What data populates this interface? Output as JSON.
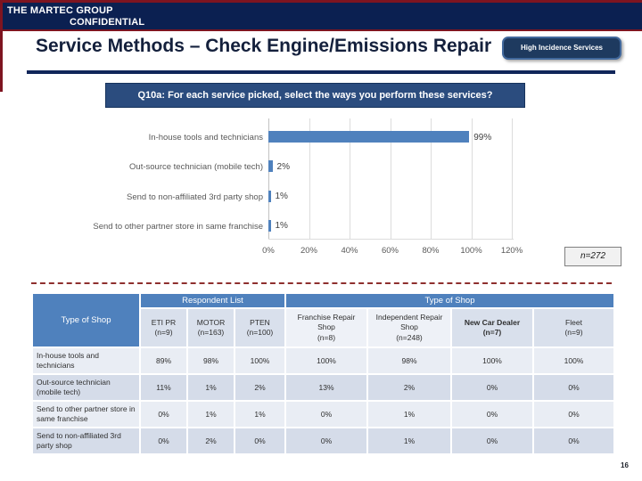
{
  "header": {
    "company": "THE MARTEC GROUP",
    "confidential": "CONFIDENTIAL"
  },
  "title": "Service Methods – Check Engine/Emissions Repair",
  "tag_button": "High Incidence Services",
  "question": "Q10a: For each service picked, select the ways you perform these services?",
  "chart_data": {
    "type": "bar",
    "orientation": "horizontal",
    "title": "",
    "categories": [
      "In-house tools and technicians",
      "Out-source technician (mobile tech)",
      "Send to non-affiliated 3rd party shop",
      "Send to other partner store in same franchise"
    ],
    "values": [
      99,
      2,
      1,
      1
    ],
    "value_labels": [
      "99%",
      "2%",
      "1%",
      "1%"
    ],
    "x_ticks": [
      "0%",
      "20%",
      "40%",
      "60%",
      "80%",
      "100%",
      "120%"
    ],
    "xlim": [
      0,
      120
    ],
    "grid": "vertical",
    "legend": "none",
    "bar_color": "#4f81bd",
    "sample_note": "n=272"
  },
  "table": {
    "corner_header": "Type of Shop",
    "group_headers": [
      {
        "label": "Respondent List",
        "span": 3
      },
      {
        "label": "Type of Shop",
        "span": 4
      }
    ],
    "columns": [
      {
        "label": "ETI PR",
        "n": "(n=9)"
      },
      {
        "label": "MOTOR",
        "n": "(n=163)"
      },
      {
        "label": "PTEN",
        "n": "(n=100)"
      },
      {
        "label": "Franchise Repair Shop",
        "n": "(n=8)"
      },
      {
        "label": "Independent Repair Shop",
        "n": "(n=248)"
      },
      {
        "label": "New Car Dealer",
        "n": "(n=7)"
      },
      {
        "label": "Fleet",
        "n": "(n=9)"
      }
    ],
    "rows": [
      {
        "label": "In-house tools and technicians",
        "values": [
          "89%",
          "98%",
          "100%",
          "100%",
          "98%",
          "100%",
          "100%"
        ]
      },
      {
        "label": "Out-source technician (mobile tech)",
        "values": [
          "11%",
          "1%",
          "2%",
          "13%",
          "2%",
          "0%",
          "0%"
        ]
      },
      {
        "label": "Send to other partner store in same franchise",
        "values": [
          "0%",
          "1%",
          "1%",
          "0%",
          "1%",
          "0%",
          "0%"
        ]
      },
      {
        "label": "Send to non-affiliated 3rd party shop",
        "values": [
          "0%",
          "2%",
          "0%",
          "0%",
          "1%",
          "0%",
          "0%"
        ]
      }
    ]
  },
  "page_number": "16",
  "colors": {
    "band_navy": "#0b2051",
    "accent_red": "#7e1420",
    "bar_blue": "#4f81bd",
    "table_header_blue": "#4f81bd",
    "question_bg": "#2b4c7e",
    "button_bg": "#1e3a5f"
  }
}
